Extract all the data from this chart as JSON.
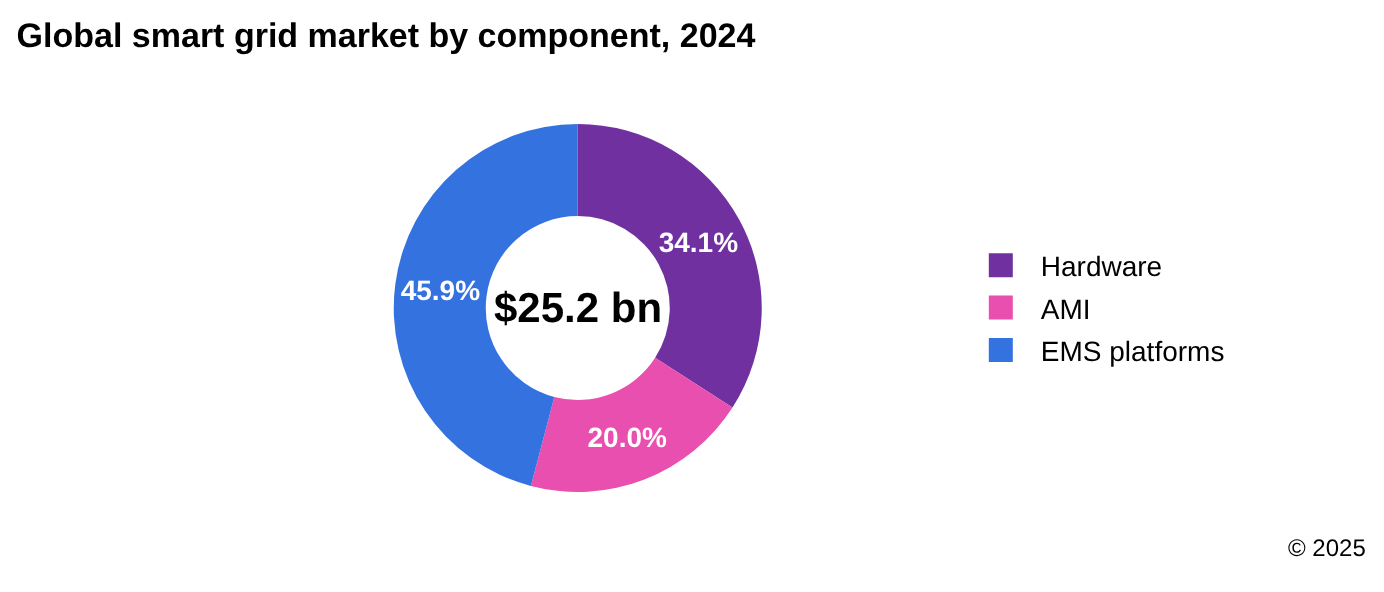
{
  "chart_data": {
    "type": "donut",
    "title": "Global smart grid market by component, 2024",
    "categories": [
      "Hardware",
      "AMI",
      "EMS platforms"
    ],
    "values": [
      34.1,
      20.0,
      45.9
    ],
    "colors": [
      "#7030a0",
      "#e84fae",
      "#3472e0"
    ],
    "value_labels": [
      "34.1%",
      "20.0%",
      "45.9%"
    ],
    "legend": "right",
    "annotations": [
      "$25.2 bn",
      "© 2025"
    ]
  }
}
